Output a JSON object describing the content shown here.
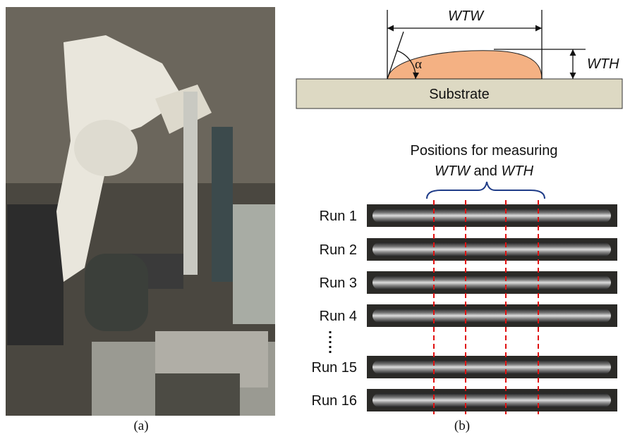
{
  "panel_a": {
    "label": "(a)"
  },
  "panel_b": {
    "label": "(b)",
    "diagram": {
      "width": "WTW",
      "height": "WTH",
      "angle": "α",
      "substrate": "Substrate"
    },
    "caption": {
      "line1": "Positions for measuring",
      "width": "WTW",
      "joiner": "and",
      "height": "WTH"
    },
    "runs": [
      "Run 1",
      "Run 2",
      "Run 3",
      "Run 4",
      "Run 15",
      "Run 16"
    ]
  }
}
